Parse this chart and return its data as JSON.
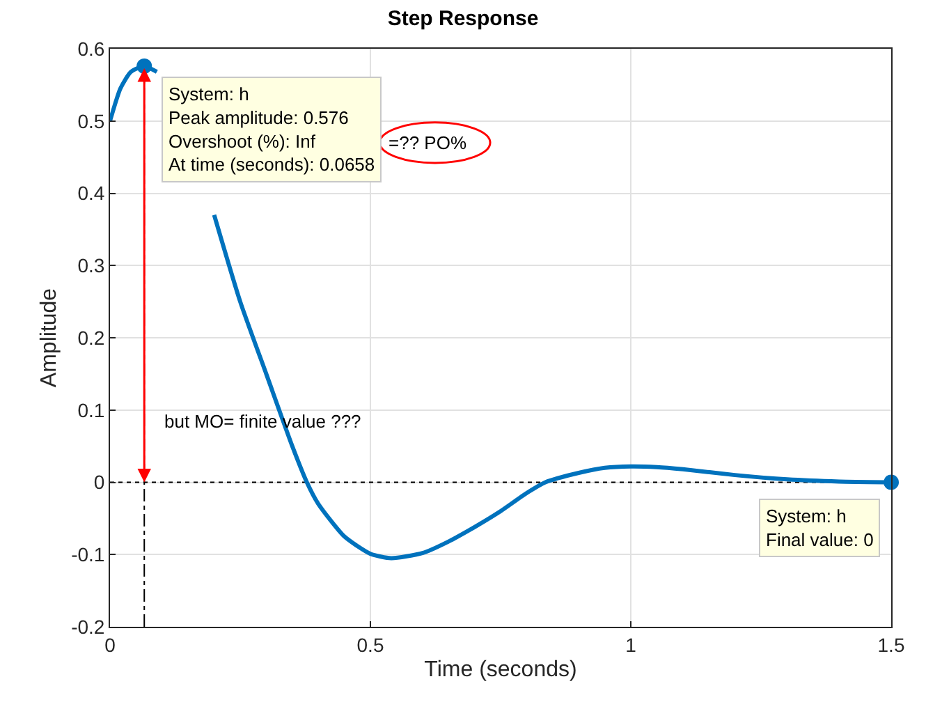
{
  "chart_data": {
    "type": "line",
    "title": "Step Response",
    "xlabel": "Time (seconds)",
    "ylabel": "Amplitude",
    "series": [
      {
        "type": "line",
        "color": "#0072bd",
        "marker": "none",
        "x": [
          0,
          0.02,
          0.04,
          0.0658,
          0.09,
          0.12,
          0.15,
          0.2,
          0.25,
          0.3,
          0.35,
          0.378,
          0.4,
          0.45,
          0.5,
          0.54,
          0.6,
          0.65,
          0.7,
          0.75,
          0.8,
          0.836,
          0.9,
          0.95,
          1.0,
          1.05,
          1.1,
          1.2,
          1.3,
          1.4,
          1.5
        ],
        "values": [
          0.5,
          0.545,
          0.568,
          0.576,
          0.568,
          null,
          null,
          0.37,
          0.25,
          0.15,
          0.05,
          0,
          -0.03,
          -0.075,
          -0.099,
          -0.105,
          -0.098,
          -0.082,
          -0.062,
          -0.04,
          -0.015,
          0,
          0.013,
          0.02,
          0.022,
          0.021,
          0.018,
          0.01,
          0.004,
          0.001,
          0
        ]
      },
      {
        "type": "scatter",
        "color": "#0072bd",
        "marker": "circle",
        "x": [
          0.0658,
          1.5
        ],
        "values": [
          0.576,
          0
        ]
      }
    ],
    "xlim": [
      0,
      1.5
    ],
    "xticks": [
      0,
      0.5,
      1,
      1.5
    ],
    "ylim": [
      -0.2,
      0.6
    ],
    "yticks": [
      -0.2,
      -0.1,
      0,
      0.1,
      0.2,
      0.3,
      0.4,
      0.5,
      0.6
    ],
    "grid": true,
    "line_style": "solid",
    "ref_lines": [
      {
        "axis": "y",
        "value": 0,
        "color": "#000000",
        "line_style": "dotted"
      },
      {
        "axis": "x",
        "value": 0.0658,
        "color": "#000000",
        "line_style": "dashdot"
      }
    ],
    "annotations": [
      {
        "text": "System: h\nPeak amplitude: 0.576\nOvershoot (%): Inf\nAt time (seconds): 0.0658",
        "x": 0.0658,
        "y": 0.576
      },
      {
        "text": "System: h\nFinal value: 0",
        "x": 1.5,
        "y": 0
      },
      "=?? PO%",
      "but MO= finite value ???"
    ]
  }
}
